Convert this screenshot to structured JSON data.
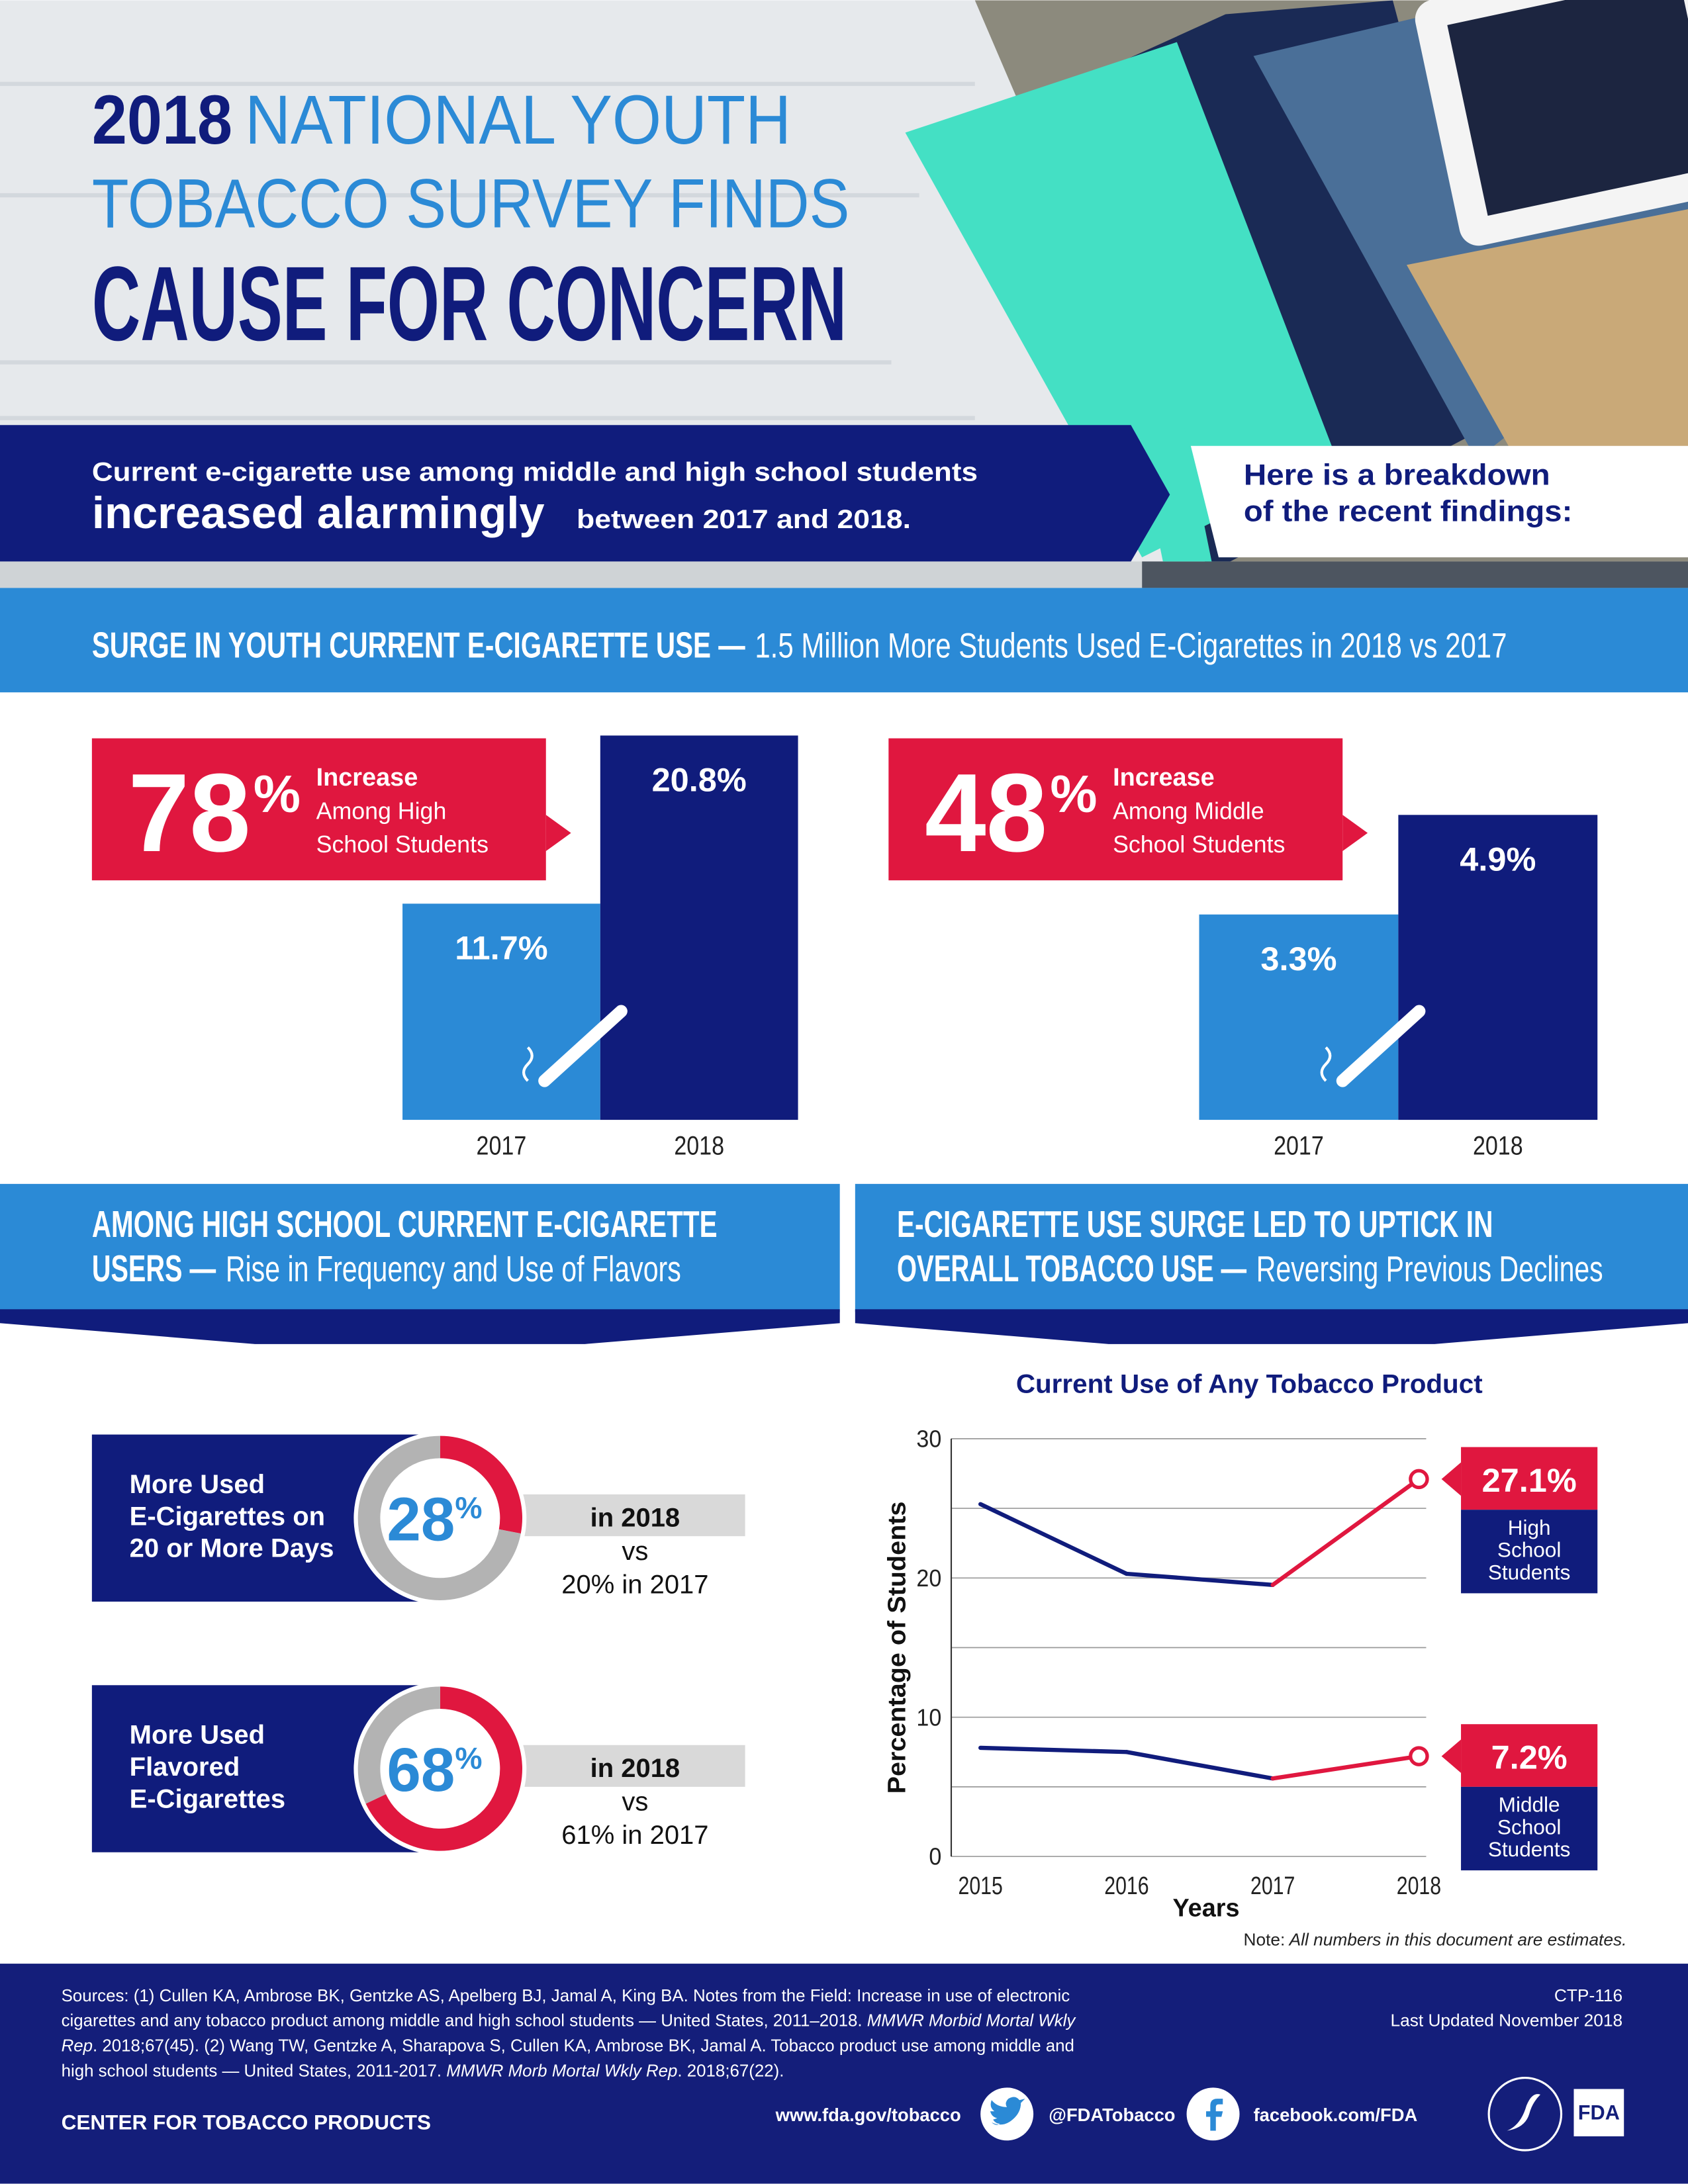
{
  "header": {
    "title": {
      "year": "2018",
      "line1": "NATIONAL YOUTH",
      "line2": "TOBACCO SURVEY FINDS",
      "line3": "CAUSE FOR CONCERN"
    }
  },
  "banner": {
    "line1": "Current e-cigarette use among middle and high school students",
    "emphasis": "increased alarmingly",
    "line2": "between 2017 and 2018.",
    "aside": [
      "Here is a breakdown",
      "of the recent findings:"
    ]
  },
  "sections": [
    {
      "title": [
        "SURGE IN YOUTH CURRENT E-CIGARETTE USE —"
      ],
      "subtitle": "1.5 Million More Students Used E-Cigarettes in 2018 vs 2017"
    },
    {
      "title": [
        "AMONG HIGH SCHOOL CURRENT E-CIGARETTE",
        "USERS —"
      ],
      "subtitle": "Rise in Frequency and Use of Flavors"
    },
    {
      "title": [
        "E-CIGARETTE USE SURGE LED TO UPTICK IN",
        "OVERALL TOBACCO USE —"
      ],
      "subtitle": "Reversing Previous Declines"
    }
  ],
  "chart_data": [
    {
      "type": "bar",
      "categories": [
        "2017",
        "2018"
      ],
      "values": [
        11.7,
        20.8
      ],
      "value_labels": [
        "11.7%",
        "20.8%"
      ],
      "colors": [
        "#2b8ad6",
        "#101c7c"
      ],
      "callout": {
        "value": 78,
        "unit": "%",
        "title": "Increase",
        "lines": [
          "Among High",
          "School Students"
        ],
        "color": "#e0173f"
      }
    },
    {
      "type": "bar",
      "categories": [
        "2017",
        "2018"
      ],
      "values": [
        3.3,
        4.9
      ],
      "value_labels": [
        "3.3%",
        "4.9%"
      ],
      "colors": [
        "#2b8ad6",
        "#101c7c"
      ],
      "callout": {
        "value": 48,
        "unit": "%",
        "title": "Increase",
        "lines": [
          "Among Middle",
          "School Students"
        ],
        "color": "#e0173f"
      }
    },
    {
      "type": "donut",
      "values": [
        28,
        72
      ],
      "unit": "%",
      "colors": [
        "#e0173f",
        "#b3b3b3"
      ],
      "label_lines": [
        "More Used",
        "E-Cigarettes on",
        "20 or More Days"
      ],
      "comparison": [
        "in 2018",
        "vs",
        "20% in 2017"
      ]
    },
    {
      "type": "donut",
      "values": [
        68,
        32
      ],
      "unit": "%",
      "colors": [
        "#e0173f",
        "#b3b3b3"
      ],
      "label_lines": [
        "More Used",
        "Flavored",
        "E-Cigarettes"
      ],
      "comparison": [
        "in 2018",
        "vs",
        "61% in 2017"
      ]
    },
    {
      "type": "line",
      "title": "Current Use of Any Tobacco Product",
      "x_label": "Years",
      "y_label": "Percentage of Students",
      "x": [
        2015,
        2016,
        2017,
        2018
      ],
      "xlim": [
        2014.8,
        2018.05
      ],
      "xticks": [
        2015,
        2016,
        2017,
        2018
      ],
      "ylim": [
        0,
        30
      ],
      "yticks": [
        0,
        10,
        20,
        30
      ],
      "y_minor_ticks": [
        5,
        15,
        25
      ],
      "grid": true,
      "highlight_color": "#e0173f",
      "series": [
        {
          "label_lines": [
            "High",
            "School",
            "Students"
          ],
          "color": "#101c7c",
          "values": [
            25.3,
            20.3,
            19.5,
            27.1
          ],
          "value_labels": [
            null,
            null,
            null,
            "27.1%"
          ]
        },
        {
          "label_lines": [
            "Middle",
            "School",
            "Students"
          ],
          "color": "#101c7c",
          "values": [
            7.8,
            7.5,
            5.6,
            7.2
          ],
          "value_labels": [
            null,
            null,
            null,
            "7.2%"
          ]
        }
      ]
    }
  ],
  "note": {
    "label": "Note:",
    "text": "All numbers in this document are estimates."
  },
  "footer": {
    "sources": [
      [
        {
          "text": "Sources: (1) Cullen KA, Ambrose BK, Gentzke AS, Apelberg BJ, Jamal A, King BA. Notes from the Field: Increase in use of electronic"
        }
      ],
      [
        {
          "text": "cigarettes and any tobacco product among middle and high school students — United States, 2011–2018. "
        },
        {
          "text": "MMWR Morbid Mortal Wkly",
          "italic": true
        }
      ],
      [
        {
          "text": "Rep",
          "italic": true
        },
        {
          "text": ". 2018;67(45). (2) Wang TW, Gentzke A, Sharapova S, Cullen KA, Ambrose BK, Jamal A. Tobacco product use among middle and"
        }
      ],
      [
        {
          "text": "high school students — United States, 2011-2017. "
        },
        {
          "text": "MMWR Morb Mortal Wkly Rep",
          "italic": true
        },
        {
          "text": ". 2018;67(22)."
        }
      ]
    ],
    "code": "CTP-116",
    "updated": "Last Updated November 2018",
    "center": "CENTER FOR TOBACCO PRODUCTS",
    "website": "www.fda.gov/tobacco",
    "twitter": "@FDATobacco",
    "facebook": "facebook.com/FDA",
    "logo": "FDA"
  }
}
